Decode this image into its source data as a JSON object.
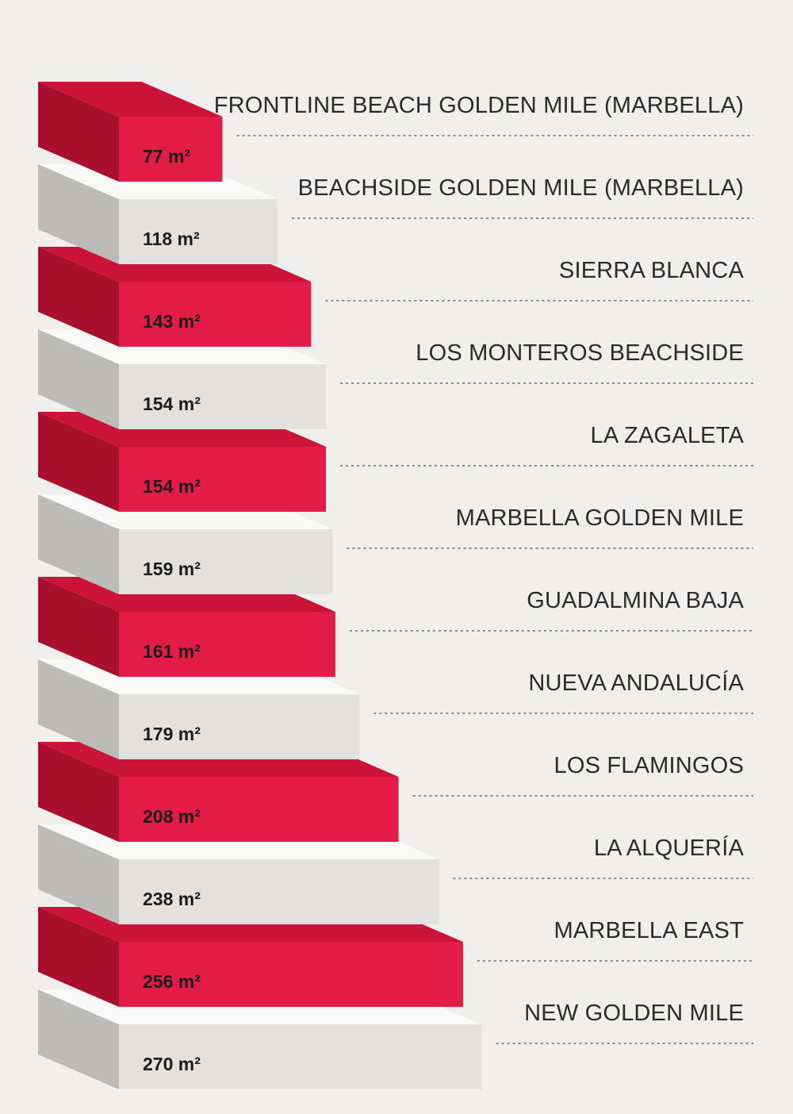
{
  "chart_data": {
    "type": "bar",
    "orientation": "horizontal-stacked-3d",
    "unit": "m²",
    "categories": [
      "FRONTLINE BEACH GOLDEN MILE (MARBELLA)",
      "BEACHSIDE GOLDEN MILE (MARBELLA)",
      "SIERRA BLANCA",
      "LOS MONTEROS BEACHSIDE",
      "LA ZAGALETA",
      "MARBELLA GOLDEN MILE",
      "GUADALMINA BAJA",
      "NUEVA ANDALUCÍA",
      "LOS FLAMINGOS",
      "LA ALQUERÍA",
      "MARBELLA EAST",
      "NEW GOLDEN MILE"
    ],
    "values": [
      77,
      118,
      143,
      154,
      154,
      159,
      161,
      179,
      208,
      238,
      256,
      270
    ],
    "value_labels": [
      "77 m²",
      "118 m²",
      "143 m²",
      "154 m²",
      "154 m²",
      "159 m²",
      "161 m²",
      "179 m²",
      "208 m²",
      "238 m²",
      "256 m²",
      "270 m²"
    ],
    "title": "",
    "xlabel": "",
    "ylabel": "",
    "grid": false,
    "legend": "none"
  },
  "colors": {
    "background": "#f0efed",
    "red_front": "#e31b47",
    "red_top": "#cc1338",
    "red_side": "#a9102e",
    "grey_front": "#e3e1df",
    "grey_top": "#f9f9f8",
    "grey_side": "#bdbbb9",
    "text": "#2b2b2b",
    "leader": "#8a8a8a"
  }
}
